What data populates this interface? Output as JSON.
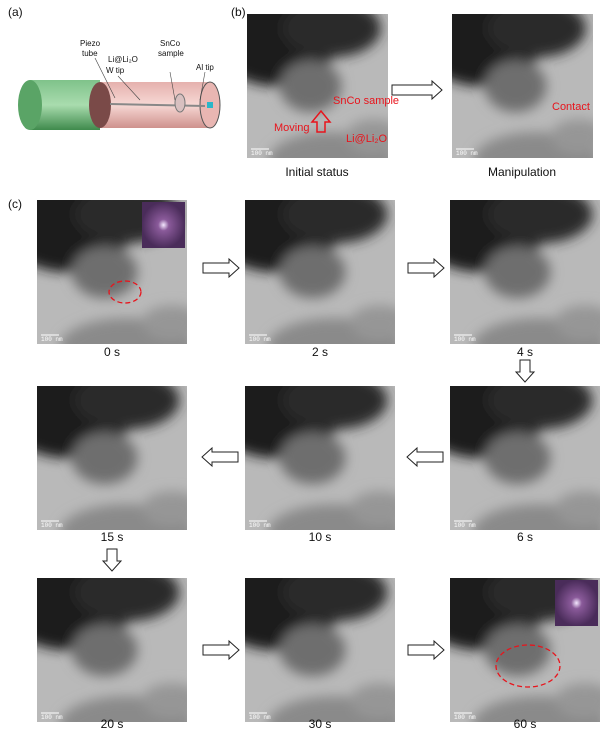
{
  "panel_a": {
    "label": "(a)",
    "piezo_tube": [
      "Piezo",
      "tube"
    ],
    "li_li2o": "Li@Li₂O",
    "w_tip": "W tip",
    "snco_sample": [
      "SnCo",
      "sample"
    ],
    "al_tip": "Al tip"
  },
  "panel_b": {
    "label": "(b)",
    "images": [
      {
        "caption": "Initial status",
        "scale_bar": "100 nm",
        "annotations": [
          "SnCo sample",
          "Moving",
          "Li@Li₂O"
        ]
      },
      {
        "caption": "Manipulation",
        "scale_bar": "100 nm",
        "annotations": [
          "Contact"
        ]
      }
    ]
  },
  "panel_c": {
    "label": "(c)",
    "frames": [
      {
        "caption": "0 s",
        "scale_bar": "100 nm"
      },
      {
        "caption": "2 s",
        "scale_bar": "100 nm"
      },
      {
        "caption": "4 s",
        "scale_bar": "100 nm"
      },
      {
        "caption": "6 s",
        "scale_bar": "100 nm"
      },
      {
        "caption": "10 s",
        "scale_bar": "100 nm"
      },
      {
        "caption": "15 s",
        "scale_bar": "100 nm"
      },
      {
        "caption": "20 s",
        "scale_bar": "100 nm"
      },
      {
        "caption": "30 s",
        "scale_bar": "100 nm"
      },
      {
        "caption": "60 s",
        "scale_bar": "100 nm"
      }
    ]
  }
}
